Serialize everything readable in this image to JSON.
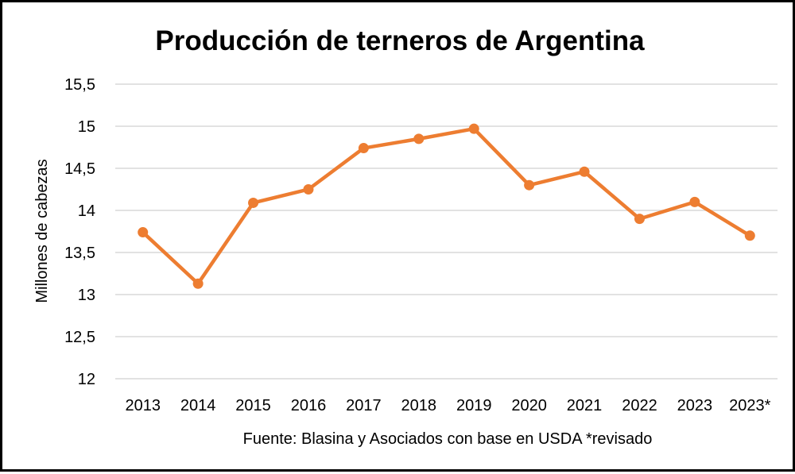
{
  "chart_data": {
    "type": "line",
    "title": "Producción de terneros de Argentina",
    "ylabel": "Millones de cabezas",
    "xlabel": "",
    "caption": "Fuente: Blasina y Asociados con base en USDA *revisado",
    "categories": [
      "2013",
      "2014",
      "2015",
      "2016",
      "2017",
      "2018",
      "2019",
      "2020",
      "2021",
      "2022",
      "2023",
      "2023*"
    ],
    "series": [
      {
        "values": [
          13.74,
          13.13,
          14.09,
          14.25,
          14.74,
          14.85,
          14.97,
          14.3,
          14.46,
          13.9,
          14.1,
          13.7
        ],
        "color": "#ED7D31"
      }
    ],
    "ylim": [
      12,
      15.5
    ],
    "yticks": [
      12,
      12.5,
      13,
      13.5,
      14,
      14.5,
      15,
      15.5
    ],
    "ytick_labels": [
      "12",
      "12,5",
      "13",
      "13,5",
      "14",
      "14,5",
      "15",
      "15,5"
    ],
    "grid": true,
    "gridline_color": "#D9D9D9",
    "legend": "none"
  }
}
